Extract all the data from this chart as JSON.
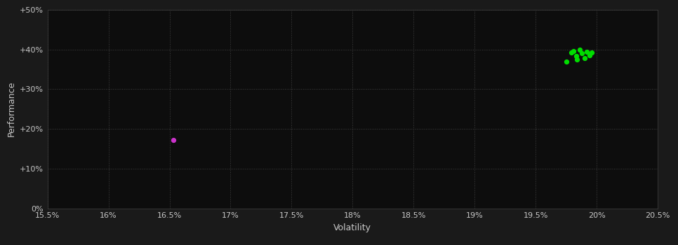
{
  "background_color": "#1a1a1a",
  "plot_bg_color": "#0d0d0d",
  "grid_color": "#404040",
  "text_color": "#c8c8c8",
  "xlabel": "Volatility",
  "ylabel": "Performance",
  "xlim": [
    0.155,
    0.205
  ],
  "ylim": [
    0.0,
    0.5
  ],
  "xticks": [
    0.155,
    0.16,
    0.165,
    0.17,
    0.175,
    0.18,
    0.185,
    0.19,
    0.195,
    0.2,
    0.205
  ],
  "yticks": [
    0.0,
    0.1,
    0.2,
    0.3,
    0.4,
    0.5
  ],
  "ytick_labels": [
    "0%",
    "+10%",
    "+20%",
    "+30%",
    "+40%",
    "+50%"
  ],
  "xtick_labels": [
    "15.5%",
    "16%",
    "16.5%",
    "17%",
    "17.5%",
    "18%",
    "18.5%",
    "19%",
    "19.5%",
    "20%",
    "20.5%"
  ],
  "green_points": [
    [
      0.1975,
      0.37
    ],
    [
      0.1983,
      0.383
    ],
    [
      0.1988,
      0.39
    ],
    [
      0.1992,
      0.395
    ],
    [
      0.1986,
      0.4
    ],
    [
      0.1979,
      0.393
    ],
    [
      0.1994,
      0.386
    ],
    [
      0.199,
      0.378
    ],
    [
      0.1996,
      0.392
    ],
    [
      0.1981,
      0.396
    ],
    [
      0.1984,
      0.375
    ]
  ],
  "green_color": "#00dd00",
  "magenta_points": [
    [
      0.1653,
      0.172
    ]
  ],
  "magenta_color": "#cc33cc",
  "marker_size": 18
}
